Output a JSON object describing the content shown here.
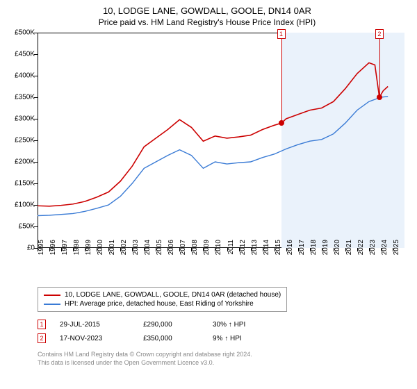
{
  "title": "10, LODGE LANE, GOWDALL, GOOLE, DN14 0AR",
  "subtitle": "Price paid vs. HM Land Registry's House Price Index (HPI)",
  "chart": {
    "type": "line",
    "background_color": "#ffffff",
    "shade_color": "#eaf2fb",
    "shade_xrange": [
      2015.6,
      2026
    ],
    "xlim": [
      1995,
      2026
    ],
    "ylim": [
      0,
      500000
    ],
    "ytick_step": 50000,
    "yticks": [
      0,
      50000,
      100000,
      150000,
      200000,
      250000,
      300000,
      350000,
      400000,
      450000,
      500000
    ],
    "ytick_labels": [
      "£0",
      "£50K",
      "£100K",
      "£150K",
      "£200K",
      "£250K",
      "£300K",
      "£350K",
      "£400K",
      "£450K",
      "£500K"
    ],
    "xticks": [
      1995,
      1996,
      1997,
      1998,
      1999,
      2000,
      2001,
      2002,
      2003,
      2004,
      2005,
      2006,
      2007,
      2008,
      2009,
      2010,
      2011,
      2012,
      2013,
      2014,
      2015,
      2016,
      2017,
      2018,
      2019,
      2020,
      2021,
      2022,
      2023,
      2024,
      2025
    ],
    "series": [
      {
        "name": "10, LODGE LANE, GOWDALL, GOOLE, DN14 0AR (detached house)",
        "color": "#cc0000",
        "line_width": 1.6,
        "data": [
          [
            1995,
            98000
          ],
          [
            1996,
            97000
          ],
          [
            1997,
            99000
          ],
          [
            1998,
            102000
          ],
          [
            1999,
            108000
          ],
          [
            2000,
            118000
          ],
          [
            2001,
            130000
          ],
          [
            2002,
            155000
          ],
          [
            2003,
            190000
          ],
          [
            2004,
            235000
          ],
          [
            2005,
            255000
          ],
          [
            2006,
            275000
          ],
          [
            2007,
            298000
          ],
          [
            2008,
            280000
          ],
          [
            2009,
            248000
          ],
          [
            2010,
            260000
          ],
          [
            2011,
            255000
          ],
          [
            2012,
            258000
          ],
          [
            2013,
            262000
          ],
          [
            2014,
            275000
          ],
          [
            2015,
            285000
          ],
          [
            2015.6,
            290000
          ],
          [
            2016,
            300000
          ],
          [
            2017,
            310000
          ],
          [
            2018,
            320000
          ],
          [
            2019,
            325000
          ],
          [
            2020,
            340000
          ],
          [
            2021,
            370000
          ],
          [
            2022,
            405000
          ],
          [
            2023,
            430000
          ],
          [
            2023.5,
            425000
          ],
          [
            2023.88,
            350000
          ],
          [
            2024.2,
            365000
          ],
          [
            2024.6,
            375000
          ]
        ]
      },
      {
        "name": "HPI: Average price, detached house, East Riding of Yorkshire",
        "color": "#3a7bd5",
        "line_width": 1.4,
        "data": [
          [
            1995,
            75000
          ],
          [
            1996,
            76000
          ],
          [
            1997,
            78000
          ],
          [
            1998,
            80000
          ],
          [
            1999,
            85000
          ],
          [
            2000,
            92000
          ],
          [
            2001,
            100000
          ],
          [
            2002,
            120000
          ],
          [
            2003,
            150000
          ],
          [
            2004,
            185000
          ],
          [
            2005,
            200000
          ],
          [
            2006,
            215000
          ],
          [
            2007,
            228000
          ],
          [
            2008,
            215000
          ],
          [
            2009,
            185000
          ],
          [
            2010,
            200000
          ],
          [
            2011,
            195000
          ],
          [
            2012,
            198000
          ],
          [
            2013,
            200000
          ],
          [
            2014,
            210000
          ],
          [
            2015,
            218000
          ],
          [
            2016,
            230000
          ],
          [
            2017,
            240000
          ],
          [
            2018,
            248000
          ],
          [
            2019,
            252000
          ],
          [
            2020,
            265000
          ],
          [
            2021,
            290000
          ],
          [
            2022,
            320000
          ],
          [
            2023,
            340000
          ],
          [
            2024,
            350000
          ],
          [
            2024.6,
            352000
          ]
        ]
      }
    ],
    "markers": [
      {
        "id": "1",
        "x": 2015.58,
        "point_y": 290000,
        "label_y": 485000
      },
      {
        "id": "2",
        "x": 2023.88,
        "point_y": 350000,
        "label_y": 485000
      }
    ]
  },
  "legend": {
    "items": [
      {
        "color": "#cc0000",
        "label": "10, LODGE LANE, GOWDALL, GOOLE, DN14 0AR (detached house)"
      },
      {
        "color": "#3a7bd5",
        "label": "HPI: Average price, detached house, East Riding of Yorkshire"
      }
    ]
  },
  "transactions": [
    {
      "id": "1",
      "date": "29-JUL-2015",
      "price": "£290,000",
      "delta": "30% ↑ HPI"
    },
    {
      "id": "2",
      "date": "17-NOV-2023",
      "price": "£350,000",
      "delta": "9% ↑ HPI"
    }
  ],
  "footer": {
    "line1": "Contains HM Land Registry data © Crown copyright and database right 2024.",
    "line2": "This data is licensed under the Open Government Licence v3.0."
  }
}
